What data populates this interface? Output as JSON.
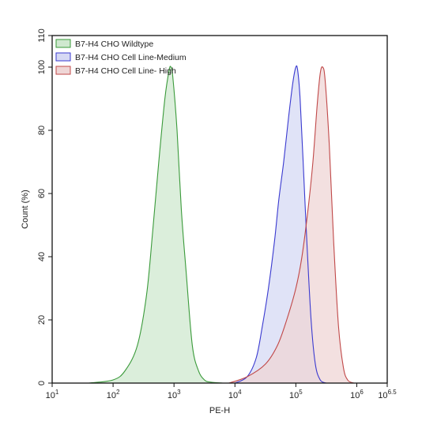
{
  "chart_data": {
    "type": "area",
    "title": "",
    "xlabel": "PE-H",
    "ylabel": "Count  (%)",
    "x_scale": "log10",
    "xlim": [
      1,
      6.5
    ],
    "ylim": [
      0,
      110
    ],
    "x_ticks": [
      {
        "value": 1,
        "base": "10",
        "exp": "1"
      },
      {
        "value": 2,
        "base": "10",
        "exp": "2"
      },
      {
        "value": 3,
        "base": "10",
        "exp": "3"
      },
      {
        "value": 4,
        "base": "10",
        "exp": "4"
      },
      {
        "value": 5,
        "base": "10",
        "exp": "5"
      },
      {
        "value": 6,
        "base": "10",
        "exp": "6"
      },
      {
        "value": 6.5,
        "base": "10",
        "exp": "6.5"
      }
    ],
    "y_ticks": [
      "0",
      "20",
      "40",
      "60",
      "80",
      "100",
      "110"
    ],
    "legend_position": "top-left",
    "grid": false,
    "series": [
      {
        "name": "B7-H4 CHO Wildtype",
        "stroke": "#3a9a3a",
        "fill": "#cfe8cf",
        "x": [
          1.6,
          2.0,
          2.2,
          2.4,
          2.55,
          2.65,
          2.75,
          2.85,
          2.92,
          2.95,
          2.98,
          3.05,
          3.12,
          3.2,
          3.3,
          3.4,
          3.5,
          3.6,
          3.8
        ],
        "y": [
          0,
          1,
          4,
          12,
          28,
          48,
          70,
          90,
          99,
          100,
          97,
          80,
          55,
          35,
          12,
          4,
          1,
          0.3,
          0
        ]
      },
      {
        "name": "B7-H4 CHO Cell Line-Medium",
        "stroke": "#3a3ad0",
        "fill": "#d6d9f4",
        "x": [
          4.0,
          4.2,
          4.35,
          4.45,
          4.55,
          4.65,
          4.72,
          4.8,
          4.88,
          4.95,
          5.0,
          5.03,
          5.07,
          5.12,
          5.18,
          5.25,
          5.32,
          5.4,
          5.5
        ],
        "y": [
          0,
          2,
          8,
          18,
          30,
          45,
          58,
          70,
          84,
          95,
          100,
          99,
          90,
          70,
          45,
          20,
          6,
          1,
          0
        ]
      },
      {
        "name": "B7-H4 CHO Cell Line- High",
        "stroke": "#c04848",
        "fill": "#efd6d6",
        "x": [
          3.9,
          4.2,
          4.5,
          4.7,
          4.85,
          5.0,
          5.1,
          5.2,
          5.28,
          5.35,
          5.4,
          5.44,
          5.48,
          5.55,
          5.62,
          5.7,
          5.78,
          5.85,
          5.95
        ],
        "y": [
          0,
          2,
          6,
          12,
          20,
          30,
          40,
          55,
          70,
          88,
          98,
          100,
          96,
          75,
          45,
          18,
          5,
          1,
          0
        ]
      }
    ]
  }
}
